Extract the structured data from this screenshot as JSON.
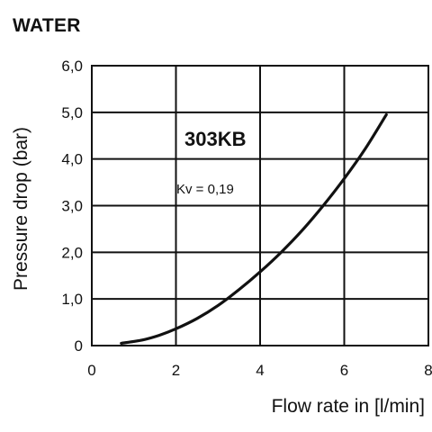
{
  "page": {
    "title": "WATER"
  },
  "chart_data": {
    "type": "line",
    "title": "WATER",
    "xlabel": "Flow rate in [l/min]",
    "ylabel": "Pressure drop (bar)",
    "xlim": [
      0,
      8
    ],
    "ylim": [
      0,
      6
    ],
    "x_ticks": [
      0,
      2,
      4,
      6,
      8
    ],
    "x_tick_labels": [
      "0",
      "2",
      "4",
      "6",
      "8"
    ],
    "y_ticks": [
      0,
      1,
      2,
      3,
      4,
      5,
      6
    ],
    "y_tick_labels": [
      "0",
      "1,0",
      "2,0",
      "3,0",
      "4,0",
      "5,0",
      "6,0"
    ],
    "grid": true,
    "series": [
      {
        "name": "303KB",
        "x": [
          0.7,
          1.2,
          1.6,
          2.0,
          2.5,
          3.0,
          3.5,
          4.0,
          4.5,
          5.0,
          5.5,
          6.0,
          6.5,
          7.0
        ],
        "y": [
          0.05,
          0.12,
          0.22,
          0.36,
          0.58,
          0.86,
          1.2,
          1.58,
          2.0,
          2.47,
          3.0,
          3.58,
          4.22,
          4.95
        ]
      }
    ],
    "annotations": [
      "303KB",
      "Kv = 0,19"
    ],
    "colors": {
      "line": "#111111",
      "grid": "#111111",
      "background": "#ffffff"
    }
  }
}
